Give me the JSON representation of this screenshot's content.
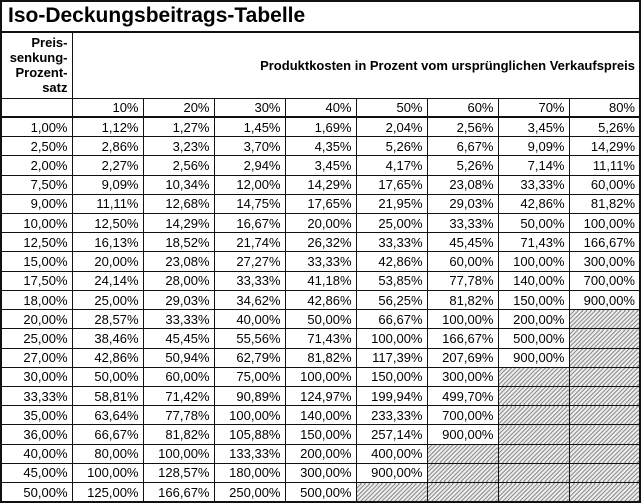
{
  "chart_data": {
    "type": "table",
    "title": "Iso-Deckungsbeitrags-Tabelle",
    "row_header_label_lines": [
      "Preis-",
      "senkung-",
      "Prozent-",
      "satz"
    ],
    "column_group_label": "Produktkosten in Prozent vom ursprünglichen Verkaufspreis",
    "columns": [
      "10%",
      "20%",
      "30%",
      "40%",
      "50%",
      "60%",
      "70%",
      "80%"
    ],
    "rows": [
      {
        "label": "1,00%",
        "values": [
          "1,12%",
          "1,27%",
          "1,45%",
          "1,69%",
          "2,04%",
          "2,56%",
          "3,45%",
          "5,26%"
        ]
      },
      {
        "label": "2,50%",
        "values": [
          "2,86%",
          "3,23%",
          "3,70%",
          "4,35%",
          "5,26%",
          "6,67%",
          "9,09%",
          "14,29%"
        ]
      },
      {
        "label": "2,00%",
        "values": [
          "2,27%",
          "2,56%",
          "2,94%",
          "3,45%",
          "4,17%",
          "5,26%",
          "7,14%",
          "11,11%"
        ]
      },
      {
        "label": "7,50%",
        "values": [
          "9,09%",
          "10,34%",
          "12,00%",
          "14,29%",
          "17,65%",
          "23,08%",
          "33,33%",
          "60,00%"
        ]
      },
      {
        "label": "9,00%",
        "values": [
          "11,11%",
          "12,68%",
          "14,75%",
          "17,65%",
          "21,95%",
          "29,03%",
          "42,86%",
          "81,82%"
        ]
      },
      {
        "label": "10,00%",
        "values": [
          "12,50%",
          "14,29%",
          "16,67%",
          "20,00%",
          "25,00%",
          "33,33%",
          "50,00%",
          "100,00%"
        ]
      },
      {
        "label": "12,50%",
        "values": [
          "16,13%",
          "18,52%",
          "21,74%",
          "26,32%",
          "33,33%",
          "45,45%",
          "71,43%",
          "166,67%"
        ]
      },
      {
        "label": "15,00%",
        "values": [
          "20,00%",
          "23,08%",
          "27,27%",
          "33,33%",
          "42,86%",
          "60,00%",
          "100,00%",
          "300,00%"
        ]
      },
      {
        "label": "17,50%",
        "values": [
          "24,14%",
          "28,00%",
          "33,33%",
          "41,18%",
          "53,85%",
          "77,78%",
          "140,00%",
          "700,00%"
        ]
      },
      {
        "label": "18,00%",
        "values": [
          "25,00%",
          "29,03%",
          "34,62%",
          "42,86%",
          "56,25%",
          "81,82%",
          "150,00%",
          "900,00%"
        ]
      },
      {
        "label": "20,00%",
        "values": [
          "28,57%",
          "33,33%",
          "40,00%",
          "50,00%",
          "66,67%",
          "100,00%",
          "200,00%",
          null
        ]
      },
      {
        "label": "25,00%",
        "values": [
          "38,46%",
          "45,45%",
          "55,56%",
          "71,43%",
          "100,00%",
          "166,67%",
          "500,00%",
          null
        ]
      },
      {
        "label": "27,00%",
        "values": [
          "42,86%",
          "50,94%",
          "62,79%",
          "81,82%",
          "117,39%",
          "207,69%",
          "900,00%",
          null
        ]
      },
      {
        "label": "30,00%",
        "values": [
          "50,00%",
          "60,00%",
          "75,00%",
          "100,00%",
          "150,00%",
          "300,00%",
          null,
          null
        ]
      },
      {
        "label": "33,33%",
        "values": [
          "58,81%",
          "71,42%",
          "90,89%",
          "124,97%",
          "199,94%",
          "499,70%",
          null,
          null
        ]
      },
      {
        "label": "35,00%",
        "values": [
          "63,64%",
          "77,78%",
          "100,00%",
          "140,00%",
          "233,33%",
          "700,00%",
          null,
          null
        ]
      },
      {
        "label": "36,00%",
        "values": [
          "66,67%",
          "81,82%",
          "105,88%",
          "150,00%",
          "257,14%",
          "900,00%",
          null,
          null
        ]
      },
      {
        "label": "40,00%",
        "values": [
          "80,00%",
          "100,00%",
          "133,33%",
          "200,00%",
          "400,00%",
          null,
          null,
          null
        ]
      },
      {
        "label": "45,00%",
        "values": [
          "100,00%",
          "128,57%",
          "180,00%",
          "300,00%",
          "900,00%",
          null,
          null,
          null
        ]
      },
      {
        "label": "50,00%",
        "values": [
          "125,00%",
          "166,67%",
          "250,00%",
          "500,00%",
          null,
          null,
          null,
          null
        ]
      }
    ],
    "layout_hints": {
      "grid": "on",
      "blocked_cell_style": "diagonal-hatch"
    },
    "colors": {
      "border": "#111111",
      "hatch_line": "#8f8f8f",
      "hatch_bg": "#ececec",
      "background": "#ffffff",
      "text": "#000000"
    }
  }
}
